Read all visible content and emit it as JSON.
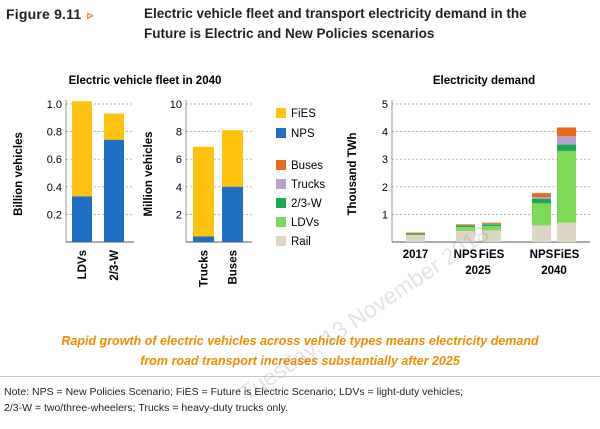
{
  "figure": {
    "number": "Figure 9.11",
    "marker": "▹",
    "title_line1": "Electric vehicle fleet and transport electricity demand in the",
    "title_line2": "Future is Electric and New Policies scenarios"
  },
  "colors": {
    "FiES": "#ffc20e",
    "NPS": "#1f6fc5",
    "Buses": "#ea6a1c",
    "Trucks": "#b79fce",
    "2/3-W": "#1aaa55",
    "LDVs": "#7ed957",
    "Rail": "#dcd6c3",
    "grid": "#9a9a9a",
    "axis": "#555555"
  },
  "chart_data": [
    {
      "type": "bar",
      "title": "Electric vehicle fleet in 2040",
      "ylabel": "Billion vehicles",
      "categories": [
        "LDVs",
        "2/3-W"
      ],
      "ylim": [
        0,
        1.0
      ],
      "yticks": [
        "0.2",
        "0.4",
        "0.6",
        "0.8",
        "1.0"
      ],
      "ytick_values": [
        0.2,
        0.4,
        0.6,
        0.8,
        1.0
      ],
      "series": [
        {
          "name": "NPS",
          "values": [
            0.33,
            0.74
          ]
        },
        {
          "name": "FiES",
          "values": [
            1.02,
            0.93
          ]
        }
      ],
      "overlap": true,
      "grid": true
    },
    {
      "type": "bar",
      "ylabel": "Million vehicles",
      "categories": [
        "Trucks",
        "Buses"
      ],
      "ylim": [
        0,
        10
      ],
      "yticks": [
        "2",
        "4",
        "6",
        "8",
        "10"
      ],
      "ytick_values": [
        2,
        4,
        6,
        8,
        10
      ],
      "series": [
        {
          "name": "NPS",
          "values": [
            0.4,
            4.0
          ]
        },
        {
          "name": "FiES",
          "values": [
            6.9,
            8.1
          ]
        }
      ],
      "overlap": true,
      "grid": true,
      "legend": [
        "FiES",
        "NPS"
      ],
      "legend_position": "right"
    },
    {
      "type": "bar",
      "stacked": true,
      "title": "Electricity demand",
      "ylabel": "Thousand TWh",
      "ylim": [
        0,
        5
      ],
      "yticks": [
        "1",
        "2",
        "3",
        "4",
        "5"
      ],
      "ytick_values": [
        1,
        2,
        3,
        4,
        5
      ],
      "bars": [
        "2017",
        "NPS 2025",
        "FiES 2025",
        "NPS 2040",
        "FiES 2040"
      ],
      "xlabels": [
        {
          "line1": "2017",
          "line2": ""
        },
        {
          "line1": "NPS",
          "line2": ""
        },
        {
          "line1": "FiES",
          "line2": ""
        },
        {
          "line1": "NPS",
          "line2": ""
        },
        {
          "line1": "FiES",
          "line2": ""
        }
      ],
      "group_labels": [
        "2025",
        "2040"
      ],
      "series": [
        {
          "name": "Rail",
          "values": [
            0.25,
            0.4,
            0.42,
            0.6,
            0.7
          ]
        },
        {
          "name": "LDVs",
          "values": [
            0.02,
            0.14,
            0.16,
            0.8,
            2.6
          ]
        },
        {
          "name": "2/3-W",
          "values": [
            0.04,
            0.06,
            0.06,
            0.17,
            0.23
          ]
        },
        {
          "name": "Trucks",
          "values": [
            0.0,
            0.01,
            0.02,
            0.06,
            0.3
          ]
        },
        {
          "name": "Buses",
          "values": [
            0.03,
            0.03,
            0.04,
            0.14,
            0.32
          ]
        }
      ],
      "legend": [
        "Buses",
        "Trucks",
        "2/3-W",
        "LDVs",
        "Rail"
      ],
      "legend_position": "left",
      "grid": true
    }
  ],
  "caption_line1": "Rapid growth of electric vehicles across vehicle types means electricity demand",
  "caption_line2": "from road transport increases substantially after 2025",
  "note_line1": "Note:  NPS = New Policies Scenario;  FiES = Future is Electric Scenario;  LDVs = light-duty vehicles;",
  "note_line2": "2/3-W = two/three-wheelers; Trucks = heavy-duty trucks only.",
  "watermark": "Tuesday, 13 November 2018"
}
